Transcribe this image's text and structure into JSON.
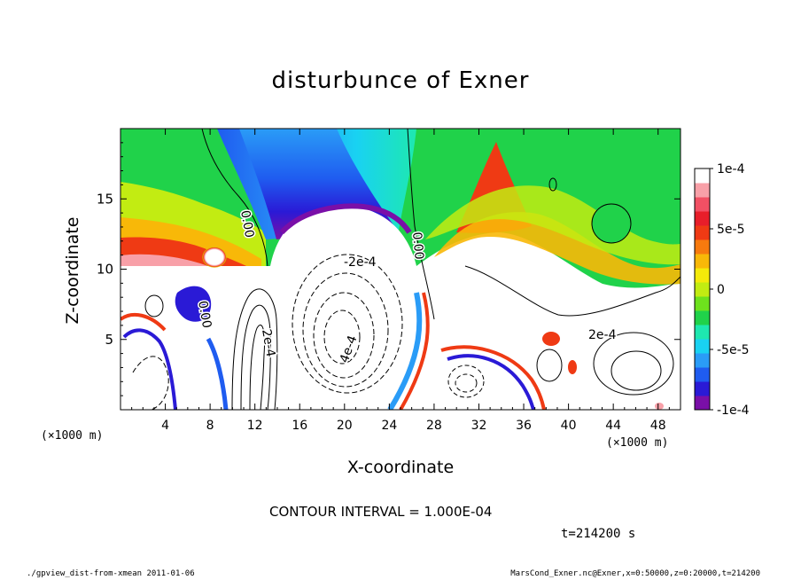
{
  "chart_data": {
    "type": "heatmap",
    "title": "disturbunce of Exner",
    "xlabel": "X-coordinate",
    "ylabel": "Z-coordinate",
    "x_unit": "(×1000 m)",
    "x_ticks": [
      4,
      8,
      12,
      16,
      20,
      24,
      28,
      32,
      36,
      40,
      44,
      48
    ],
    "y_ticks": [
      5,
      10,
      15
    ],
    "xlim": [
      0,
      50
    ],
    "ylim": [
      0,
      20
    ],
    "colorbar": {
      "range": [
        -0.0001,
        0.0001
      ],
      "tick_labels": [
        "1e-4",
        "5e-5",
        "0",
        "-5e-5",
        "-1e-4"
      ],
      "colors": [
        "#7a0fa8",
        "#2a1ad6",
        "#1f5cf0",
        "#2a9cf7",
        "#19d2f2",
        "#1ee8b0",
        "#20d24a",
        "#6ee21d",
        "#c2ec12",
        "#f4ea0a",
        "#f8b808",
        "#f77a0e",
        "#ef3a14",
        "#e81e2a",
        "#f25064",
        "#f8a0a8",
        "#ffffff"
      ]
    },
    "contour_labels": [
      "0.00",
      "0.00",
      "0.00",
      "-2e-4",
      "2e-4",
      "4e-4",
      "2e-4"
    ],
    "contour_interval": "CONTOUR INTERVAL = 1.000E-04",
    "time": "t=214200 s"
  },
  "footer": {
    "left": "./gpview_dist-from-xmean   2011-01-06",
    "right": "MarsCond_Exner.nc@Exner,x=0:50000,z=0:20000,t=214200"
  }
}
